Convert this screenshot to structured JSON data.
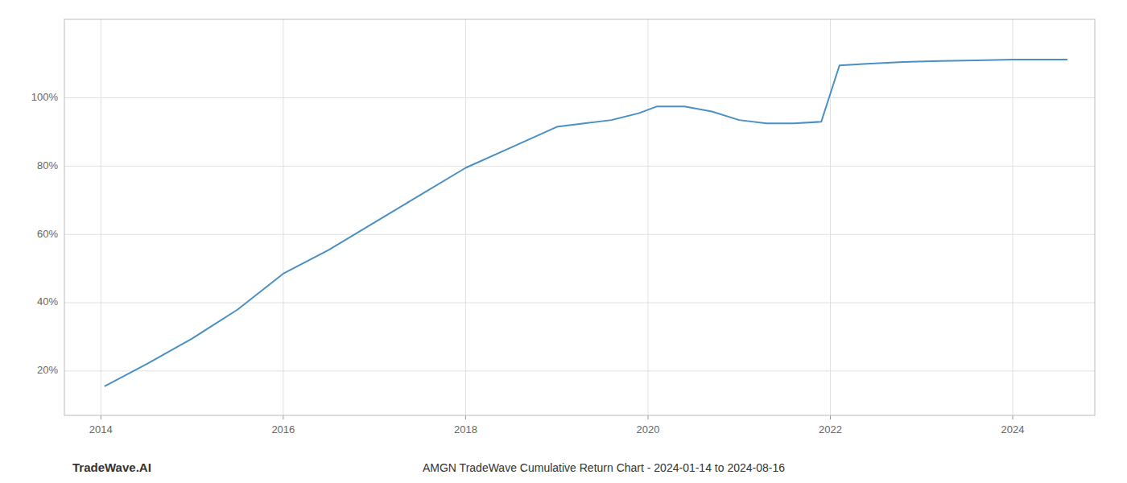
{
  "chart_data": {
    "type": "line",
    "title": "AMGN TradeWave Cumulative Return Chart - 2024-01-14 to 2024-08-16",
    "annotations": [
      "TradeWave.AI"
    ],
    "x": [
      2014.04,
      2014.5,
      2015.0,
      2015.5,
      2016.0,
      2016.5,
      2017.0,
      2017.5,
      2018.0,
      2018.5,
      2019.0,
      2019.3,
      2019.6,
      2019.9,
      2020.1,
      2020.4,
      2020.7,
      2021.0,
      2021.3,
      2021.6,
      2021.9,
      2022.1,
      2022.4,
      2022.8,
      2023.2,
      2023.6,
      2024.0,
      2024.6
    ],
    "values": [
      0.155,
      0.22,
      0.295,
      0.38,
      0.485,
      0.555,
      0.635,
      0.715,
      0.795,
      0.855,
      0.915,
      0.925,
      0.935,
      0.955,
      0.975,
      0.975,
      0.96,
      0.935,
      0.925,
      0.925,
      0.93,
      1.095,
      1.1,
      1.105,
      1.108,
      1.11,
      1.112,
      1.112
    ],
    "color": "#4a90c4",
    "xlim": [
      2013.6,
      2024.9
    ],
    "ylim": [
      0.07,
      1.23
    ],
    "xticks": [
      2014,
      2016,
      2018,
      2020,
      2022,
      2024
    ],
    "yticks": [
      {
        "value": 0.2,
        "label": "20%"
      },
      {
        "value": 0.4,
        "label": "40%"
      },
      {
        "value": 0.6,
        "label": "60%"
      },
      {
        "value": 0.8,
        "label": "80%"
      },
      {
        "value": 1.0,
        "label": "100%"
      }
    ],
    "grid": true
  }
}
